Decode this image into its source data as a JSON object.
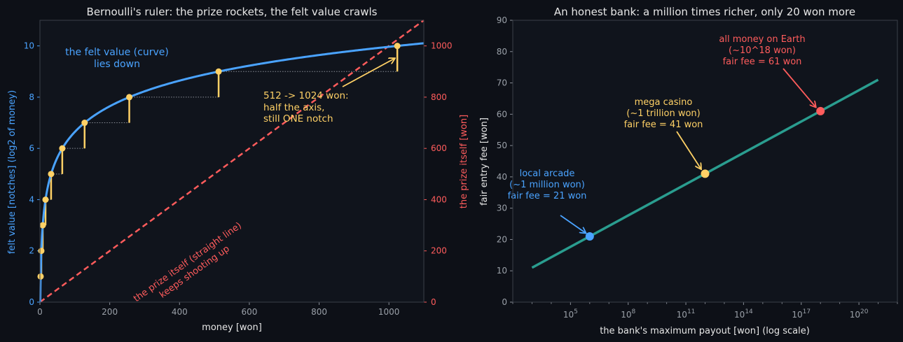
{
  "colors": {
    "background": "#0d1017",
    "plot_bg": "#10141c",
    "frame": "#3a3f48",
    "text": "#e6e6e6",
    "tick": "#9aa0a8",
    "blue": "#4aa3ff",
    "red": "#ff5c5c",
    "yellow": "#ffd166",
    "teal": "#2a9d8f",
    "grey": "#8a8f98"
  },
  "chart_data": [
    {
      "type": "line",
      "title": "Bernoulli's ruler: the prize rockets, the felt value crawls",
      "xlabel": "money [won]",
      "ylabel_left": "felt value [notches]  (log2 of money)",
      "ylabel_right": "the prize itself [won]",
      "xlim": [
        0,
        1100
      ],
      "ylim_left": [
        0,
        11
      ],
      "ylim_right": [
        0,
        1100
      ],
      "x_ticks": [
        0,
        200,
        400,
        600,
        800,
        1000
      ],
      "y_ticks_left": [
        0,
        2,
        4,
        6,
        8,
        10
      ],
      "y_ticks_right": [
        0,
        200,
        400,
        600,
        800,
        1000
      ],
      "grid": false,
      "series": [
        {
          "role": "curve",
          "function": "log2(x)",
          "x_range": [
            1,
            1100
          ],
          "color": "blue"
        },
        {
          "role": "straight line",
          "function": "x (right axis)",
          "x_range": [
            0,
            1100
          ],
          "color": "red",
          "dashed": true
        }
      ],
      "points": [
        {
          "x": 2,
          "y": 1
        },
        {
          "x": 4,
          "y": 2
        },
        {
          "x": 8,
          "y": 3
        },
        {
          "x": 16,
          "y": 4
        },
        {
          "x": 32,
          "y": 5
        },
        {
          "x": 64,
          "y": 6
        },
        {
          "x": 128,
          "y": 7
        },
        {
          "x": 256,
          "y": 8
        },
        {
          "x": 512,
          "y": 9
        },
        {
          "x": 1024,
          "y": 10
        }
      ],
      "annotations": {
        "curve_note": [
          "the felt value (curve)",
          "lies down"
        ],
        "line_note": [
          "the prize itself (straight line)",
          "keeps shooting up"
        ],
        "notch_note": [
          "512 -> 1024 won:",
          "half the axis,",
          "still ONE notch"
        ]
      }
    },
    {
      "type": "line",
      "title": "An honest bank: a million times richer, only 20 won more",
      "xlabel": "the bank's maximum payout [won]  (log scale)",
      "ylabel": "fair entry fee [won]",
      "x_scale": "log",
      "xlim": [
        100.0,
        1e+22
      ],
      "ylim": [
        0,
        90
      ],
      "x_ticks": [
        {
          "value": 100000.0,
          "base": "10",
          "exp": "5"
        },
        {
          "value": 100000000.0,
          "base": "10",
          "exp": "8"
        },
        {
          "value": 100000000000.0,
          "base": "10",
          "exp": "11"
        },
        {
          "value": 100000000000000.0,
          "base": "10",
          "exp": "14"
        },
        {
          "value": 1e+17,
          "base": "10",
          "exp": "17"
        },
        {
          "value": 1e+20,
          "base": "10",
          "exp": "20"
        }
      ],
      "y_ticks": [
        0,
        10,
        20,
        30,
        40,
        50,
        60,
        70,
        80,
        90
      ],
      "grid": false,
      "series": [
        {
          "x": [
            1000.0,
            1e+21
          ],
          "y": [
            11,
            71
          ],
          "color": "teal"
        }
      ],
      "points": [
        {
          "x": 1000000.0,
          "y": 21,
          "color": "blue",
          "label": [
            "local arcade",
            "(~1 million won)",
            "fair fee = 21 won"
          ]
        },
        {
          "x": 1000000000000.0,
          "y": 41,
          "color": "yellow",
          "label": [
            "mega casino",
            "(~1 trillion won)",
            "fair fee = 41 won"
          ]
        },
        {
          "x": 1e+18,
          "y": 61,
          "color": "red",
          "label": [
            "all money on Earth",
            "(~10^18 won)",
            "fair fee = 61 won"
          ]
        }
      ]
    }
  ]
}
